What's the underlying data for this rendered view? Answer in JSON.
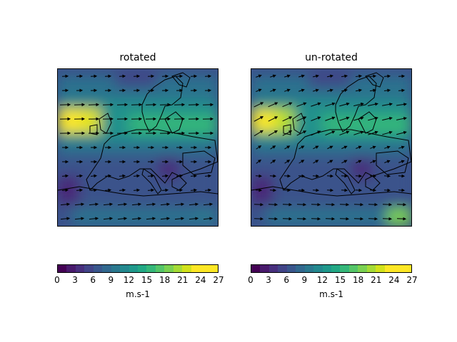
{
  "panels": [
    {
      "title": "rotated"
    },
    {
      "title": "un-rotated"
    }
  ],
  "colorbar": {
    "ticks": [
      "0",
      "3",
      "6",
      "9",
      "12",
      "15",
      "18",
      "21",
      "24",
      "27"
    ],
    "unit": "m.s-1",
    "range": [
      0,
      27
    ],
    "levels": 18,
    "colormap": [
      "#440154",
      "#481a6c",
      "#472f7d",
      "#414487",
      "#39568c",
      "#31688e",
      "#2a788e",
      "#23888e",
      "#1f988b",
      "#22a884",
      "#35b779",
      "#54c568",
      "#7ad151",
      "#a5db36",
      "#d2e21b",
      "#fde725",
      "#fde725",
      "#fde725"
    ]
  },
  "chart_data": {
    "type": "heatmap",
    "description_units": "wind speed m.s-1",
    "panels": [
      {
        "title": "rotated",
        "colorbar_label": "m.s-1",
        "range": [
          0,
          27
        ]
      },
      {
        "title": "un-rotated",
        "colorbar_label": "m.s-1",
        "range": [
          0,
          27
        ]
      }
    ]
  }
}
